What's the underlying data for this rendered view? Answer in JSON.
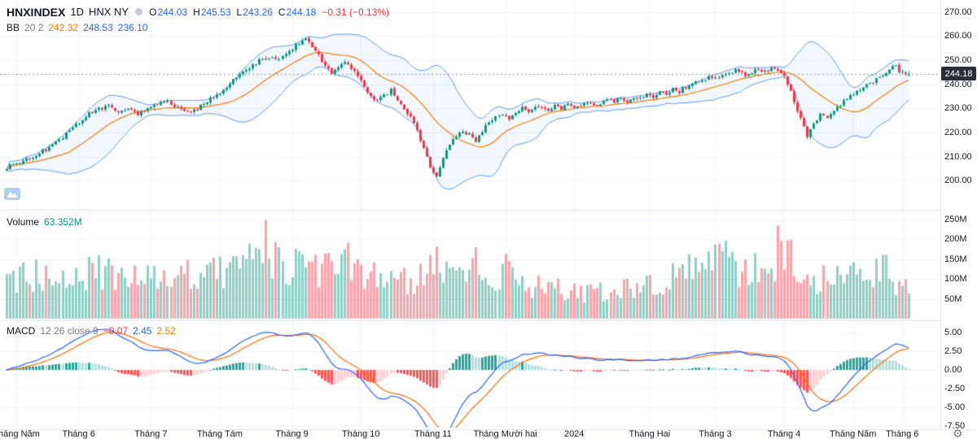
{
  "header": {
    "symbol": "HNXINDEX",
    "interval": "1D",
    "exchange": "HNX NY",
    "ohlc": {
      "o_label": "O",
      "o": "244.03",
      "h_label": "H",
      "h": "245.53",
      "l_label": "L",
      "l": "243.26",
      "c_label": "C",
      "c": "244.18",
      "change": "−0.31 (−0.13%)"
    },
    "bb": {
      "name": "BB",
      "params": "20 2",
      "basis": "242.32",
      "upper": "248.53",
      "lower": "236.10"
    }
  },
  "volume_pane": {
    "label": "Volume",
    "value": "63.352M"
  },
  "macd_pane": {
    "label": "MACD",
    "params": "12 26 close 9",
    "hist": "−0.07",
    "macd": "2.45",
    "signal": "2.52"
  },
  "price_axis": {
    "ticks": [
      "270.00",
      "260.00",
      "250.00",
      "240.00",
      "230.00",
      "220.00",
      "210.00",
      "200.00"
    ],
    "tick_values": [
      270,
      260,
      250,
      240,
      230,
      220,
      210,
      200
    ],
    "last_price_label": "244.18"
  },
  "volume_axis": {
    "ticks": [
      "250M",
      "200M",
      "150M",
      "100M",
      "50M"
    ],
    "tick_values": [
      250,
      200,
      150,
      100,
      50
    ]
  },
  "macd_axis": {
    "ticks": [
      "5.00",
      "2.50",
      "0.00",
      "-2.50",
      "-5.00",
      "-7.50"
    ],
    "tick_values": [
      5,
      2.5,
      0,
      -2.5,
      -5,
      -7.5
    ]
  },
  "time_axis": {
    "labels": [
      {
        "text": "Tháng Năm",
        "i": 3
      },
      {
        "text": "Tháng 6",
        "i": 22
      },
      {
        "text": "Tháng 7",
        "i": 44
      },
      {
        "text": "Tháng Tám",
        "i": 65
      },
      {
        "text": "Tháng 9",
        "i": 87
      },
      {
        "text": "Tháng 10",
        "i": 108
      },
      {
        "text": "Tháng 11",
        "i": 130
      },
      {
        "text": "Tháng Mười hai",
        "i": 152
      },
      {
        "text": "2024",
        "i": 173
      },
      {
        "text": "Tháng Hai",
        "i": 196
      },
      {
        "text": "Tháng 3",
        "i": 216
      },
      {
        "text": "Tháng 4",
        "i": 237
      },
      {
        "text": "Tháng Năm",
        "i": 258
      },
      {
        "text": "Tháng 6",
        "i": 273
      }
    ]
  },
  "colors": {
    "background": "#ffffff",
    "grid": "#f0f3fa",
    "separator": "#e0e3eb",
    "up": "#089981",
    "down": "#f23645",
    "volume_up": "rgba(8,153,129,0.45)",
    "volume_down": "rgba(242,54,69,0.45)",
    "bb_line": "#5b9cf6",
    "bb_basis": "#f57c00",
    "bb_fill": "rgba(91,156,246,0.07)",
    "macd_line": "#2962ff",
    "macd_signal": "#ff6d00",
    "hist_grow_above": "#26a69a",
    "hist_fall_above": "#b2dfdb",
    "hist_grow_below": "#ffcdd2",
    "hist_fall_below": "#ff5252",
    "price_line": "#9598a1",
    "badge_bg": "#2a2e39",
    "accent_blue": "#2962ff",
    "text": "#131722",
    "muted": "#787b86",
    "change_red": "#f23645",
    "volume_value_green": "#089981"
  },
  "chart_data": {
    "type": "candlestick",
    "symbol": "HNXINDEX",
    "interval": "1D",
    "n_candles": 276,
    "price_axis_range": [
      188,
      275
    ],
    "volume_axis_max_m": 260,
    "macd_axis_range": [
      -7.5,
      5
    ],
    "last": {
      "open": 244.03,
      "high": 245.53,
      "low": 243.26,
      "close": 244.18,
      "prev_close": 244.49,
      "change": -0.31,
      "change_pct": -0.13,
      "volume_m": 63.352
    },
    "indicators": {
      "bollinger": {
        "period": 20,
        "stddev": 2,
        "basis": 242.32,
        "upper": 248.53,
        "lower": 236.1
      },
      "macd": {
        "fast": 12,
        "slow": 26,
        "source": "close",
        "signal_period": 9,
        "histogram": -0.07,
        "macd": 2.45,
        "signal": 2.52
      }
    },
    "close_anchors": [
      [
        0,
        205.5
      ],
      [
        4,
        208
      ],
      [
        8,
        210
      ],
      [
        12,
        213
      ],
      [
        16,
        217
      ],
      [
        20,
        222
      ],
      [
        24,
        227
      ],
      [
        28,
        230
      ],
      [
        31,
        231
      ],
      [
        34,
        229
      ],
      [
        37,
        230
      ],
      [
        40,
        228
      ],
      [
        43,
        230
      ],
      [
        46,
        232
      ],
      [
        49,
        233
      ],
      [
        52,
        230
      ],
      [
        55,
        228
      ],
      [
        58,
        230
      ],
      [
        61,
        233
      ],
      [
        64,
        236
      ],
      [
        67,
        239
      ],
      [
        70,
        243
      ],
      [
        73,
        246
      ],
      [
        76,
        249
      ],
      [
        79,
        251
      ],
      [
        82,
        250
      ],
      [
        85,
        253
      ],
      [
        88,
        256
      ],
      [
        91,
        258.5
      ],
      [
        93,
        256
      ],
      [
        95,
        252
      ],
      [
        97,
        248
      ],
      [
        99,
        245
      ],
      [
        101,
        247
      ],
      [
        103,
        250
      ],
      [
        105,
        247
      ],
      [
        107,
        243
      ],
      [
        109,
        239
      ],
      [
        111,
        235
      ],
      [
        113,
        233
      ],
      [
        115,
        235
      ],
      [
        117,
        238
      ],
      [
        119,
        234
      ],
      [
        121,
        230
      ],
      [
        123,
        227
      ],
      [
        125,
        221
      ],
      [
        127,
        213
      ],
      [
        129,
        206
      ],
      [
        131,
        202.5
      ],
      [
        133,
        209
      ],
      [
        135,
        215
      ],
      [
        137,
        219
      ],
      [
        139,
        221
      ],
      [
        141,
        219
      ],
      [
        143,
        217
      ],
      [
        145,
        221
      ],
      [
        147,
        224
      ],
      [
        149,
        226
      ],
      [
        151,
        228
      ],
      [
        153,
        225
      ],
      [
        155,
        228
      ],
      [
        157,
        230
      ],
      [
        159,
        228
      ],
      [
        161,
        230
      ],
      [
        163,
        231
      ],
      [
        165,
        229
      ],
      [
        167,
        231
      ],
      [
        169,
        230
      ],
      [
        171,
        232
      ],
      [
        173,
        230
      ],
      [
        175,
        231
      ],
      [
        177,
        233
      ],
      [
        179,
        231
      ],
      [
        181,
        232
      ],
      [
        183,
        234
      ],
      [
        185,
        233
      ],
      [
        187,
        234
      ],
      [
        189,
        233
      ],
      [
        191,
        235
      ],
      [
        193,
        234
      ],
      [
        195,
        236
      ],
      [
        197,
        235
      ],
      [
        199,
        237
      ],
      [
        201,
        236
      ],
      [
        203,
        238
      ],
      [
        205,
        237
      ],
      [
        207,
        239
      ],
      [
        209,
        240
      ],
      [
        211,
        241
      ],
      [
        213,
        242
      ],
      [
        215,
        243
      ],
      [
        217,
        242
      ],
      [
        219,
        244
      ],
      [
        221,
        245
      ],
      [
        223,
        246
      ],
      [
        225,
        244
      ],
      [
        227,
        245
      ],
      [
        229,
        246
      ],
      [
        231,
        245
      ],
      [
        233,
        247
      ],
      [
        235,
        246
      ],
      [
        237,
        243
      ],
      [
        239,
        237
      ],
      [
        241,
        229
      ],
      [
        243,
        222
      ],
      [
        244,
        218
      ],
      [
        245,
        221
      ],
      [
        246,
        224
      ],
      [
        248,
        227
      ],
      [
        250,
        226
      ],
      [
        252,
        229
      ],
      [
        254,
        232
      ],
      [
        256,
        234
      ],
      [
        258,
        236
      ],
      [
        260,
        238
      ],
      [
        262,
        240
      ],
      [
        264,
        241
      ],
      [
        266,
        243
      ],
      [
        268,
        245
      ],
      [
        270,
        247
      ],
      [
        271,
        247.5
      ],
      [
        272,
        245.5
      ],
      [
        273,
        244.5
      ],
      [
        274,
        244.5
      ],
      [
        275,
        244.18
      ]
    ],
    "volume_anchors": [
      [
        0,
        95
      ],
      [
        10,
        112
      ],
      [
        20,
        122
      ],
      [
        30,
        112
      ],
      [
        40,
        96
      ],
      [
        50,
        102
      ],
      [
        58,
        112
      ],
      [
        66,
        125
      ],
      [
        74,
        140
      ],
      [
        79,
        150
      ],
      [
        81,
        148
      ],
      [
        86,
        135
      ],
      [
        92,
        118
      ],
      [
        98,
        135
      ],
      [
        102,
        155
      ],
      [
        106,
        125
      ],
      [
        110,
        105
      ],
      [
        115,
        112
      ],
      [
        120,
        95
      ],
      [
        124,
        102
      ],
      [
        128,
        125
      ],
      [
        131,
        132
      ],
      [
        135,
        102
      ],
      [
        140,
        112
      ],
      [
        142,
        148
      ],
      [
        145,
        95
      ],
      [
        149,
        82
      ],
      [
        152,
        158
      ],
      [
        155,
        95
      ],
      [
        159,
        82
      ],
      [
        164,
        76
      ],
      [
        169,
        72
      ],
      [
        174,
        66
      ],
      [
        179,
        62
      ],
      [
        184,
        72
      ],
      [
        189,
        82
      ],
      [
        194,
        78
      ],
      [
        199,
        92
      ],
      [
        204,
        102
      ],
      [
        209,
        122
      ],
      [
        213,
        142
      ],
      [
        216,
        175
      ],
      [
        219,
        158
      ],
      [
        222,
        132
      ],
      [
        226,
        122
      ],
      [
        230,
        148
      ],
      [
        233,
        132
      ],
      [
        236,
        185
      ],
      [
        239,
        162
      ],
      [
        242,
        125
      ],
      [
        246,
        105
      ],
      [
        250,
        95
      ],
      [
        254,
        112
      ],
      [
        258,
        122
      ],
      [
        262,
        105
      ],
      [
        265,
        140
      ],
      [
        268,
        115
      ],
      [
        271,
        95
      ],
      [
        273,
        80
      ],
      [
        275,
        63
      ]
    ],
    "volume_spikes": [
      {
        "i": 79,
        "v": 248
      },
      {
        "i": 102,
        "v": 162
      },
      {
        "i": 142,
        "v": 152
      },
      {
        "i": 152,
        "v": 163
      },
      {
        "i": 216,
        "v": 186
      },
      {
        "i": 221,
        "v": 168
      },
      {
        "i": 236,
        "v": 196
      },
      {
        "i": 265,
        "v": 150
      }
    ]
  }
}
